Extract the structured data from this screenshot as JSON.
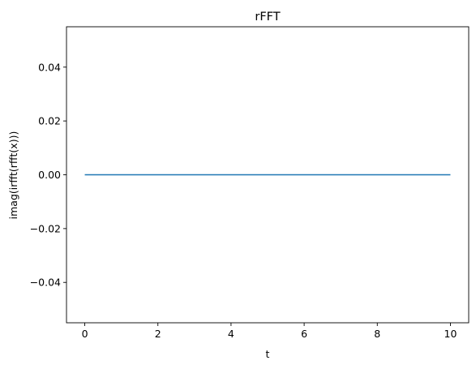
{
  "chart_data": {
    "type": "line",
    "title": "rFFT",
    "xlabel": "t",
    "ylabel": "imag(irfft(rfft(x)))",
    "xlim": [
      -0.5,
      10.5
    ],
    "ylim": [
      -0.055,
      0.055
    ],
    "xticks": [
      0,
      2,
      4,
      6,
      8,
      10
    ],
    "xtick_labels": [
      "0",
      "2",
      "4",
      "6",
      "8",
      "10"
    ],
    "yticks": [
      -0.04,
      -0.02,
      0.0,
      0.02,
      0.04
    ],
    "ytick_labels": [
      "−0.04",
      "−0.02",
      "0.00",
      "0.02",
      "0.04"
    ],
    "grid": false,
    "series": [
      {
        "color": "#1f77b4",
        "x": [
          0,
          10
        ],
        "y": [
          0,
          0
        ]
      }
    ]
  }
}
